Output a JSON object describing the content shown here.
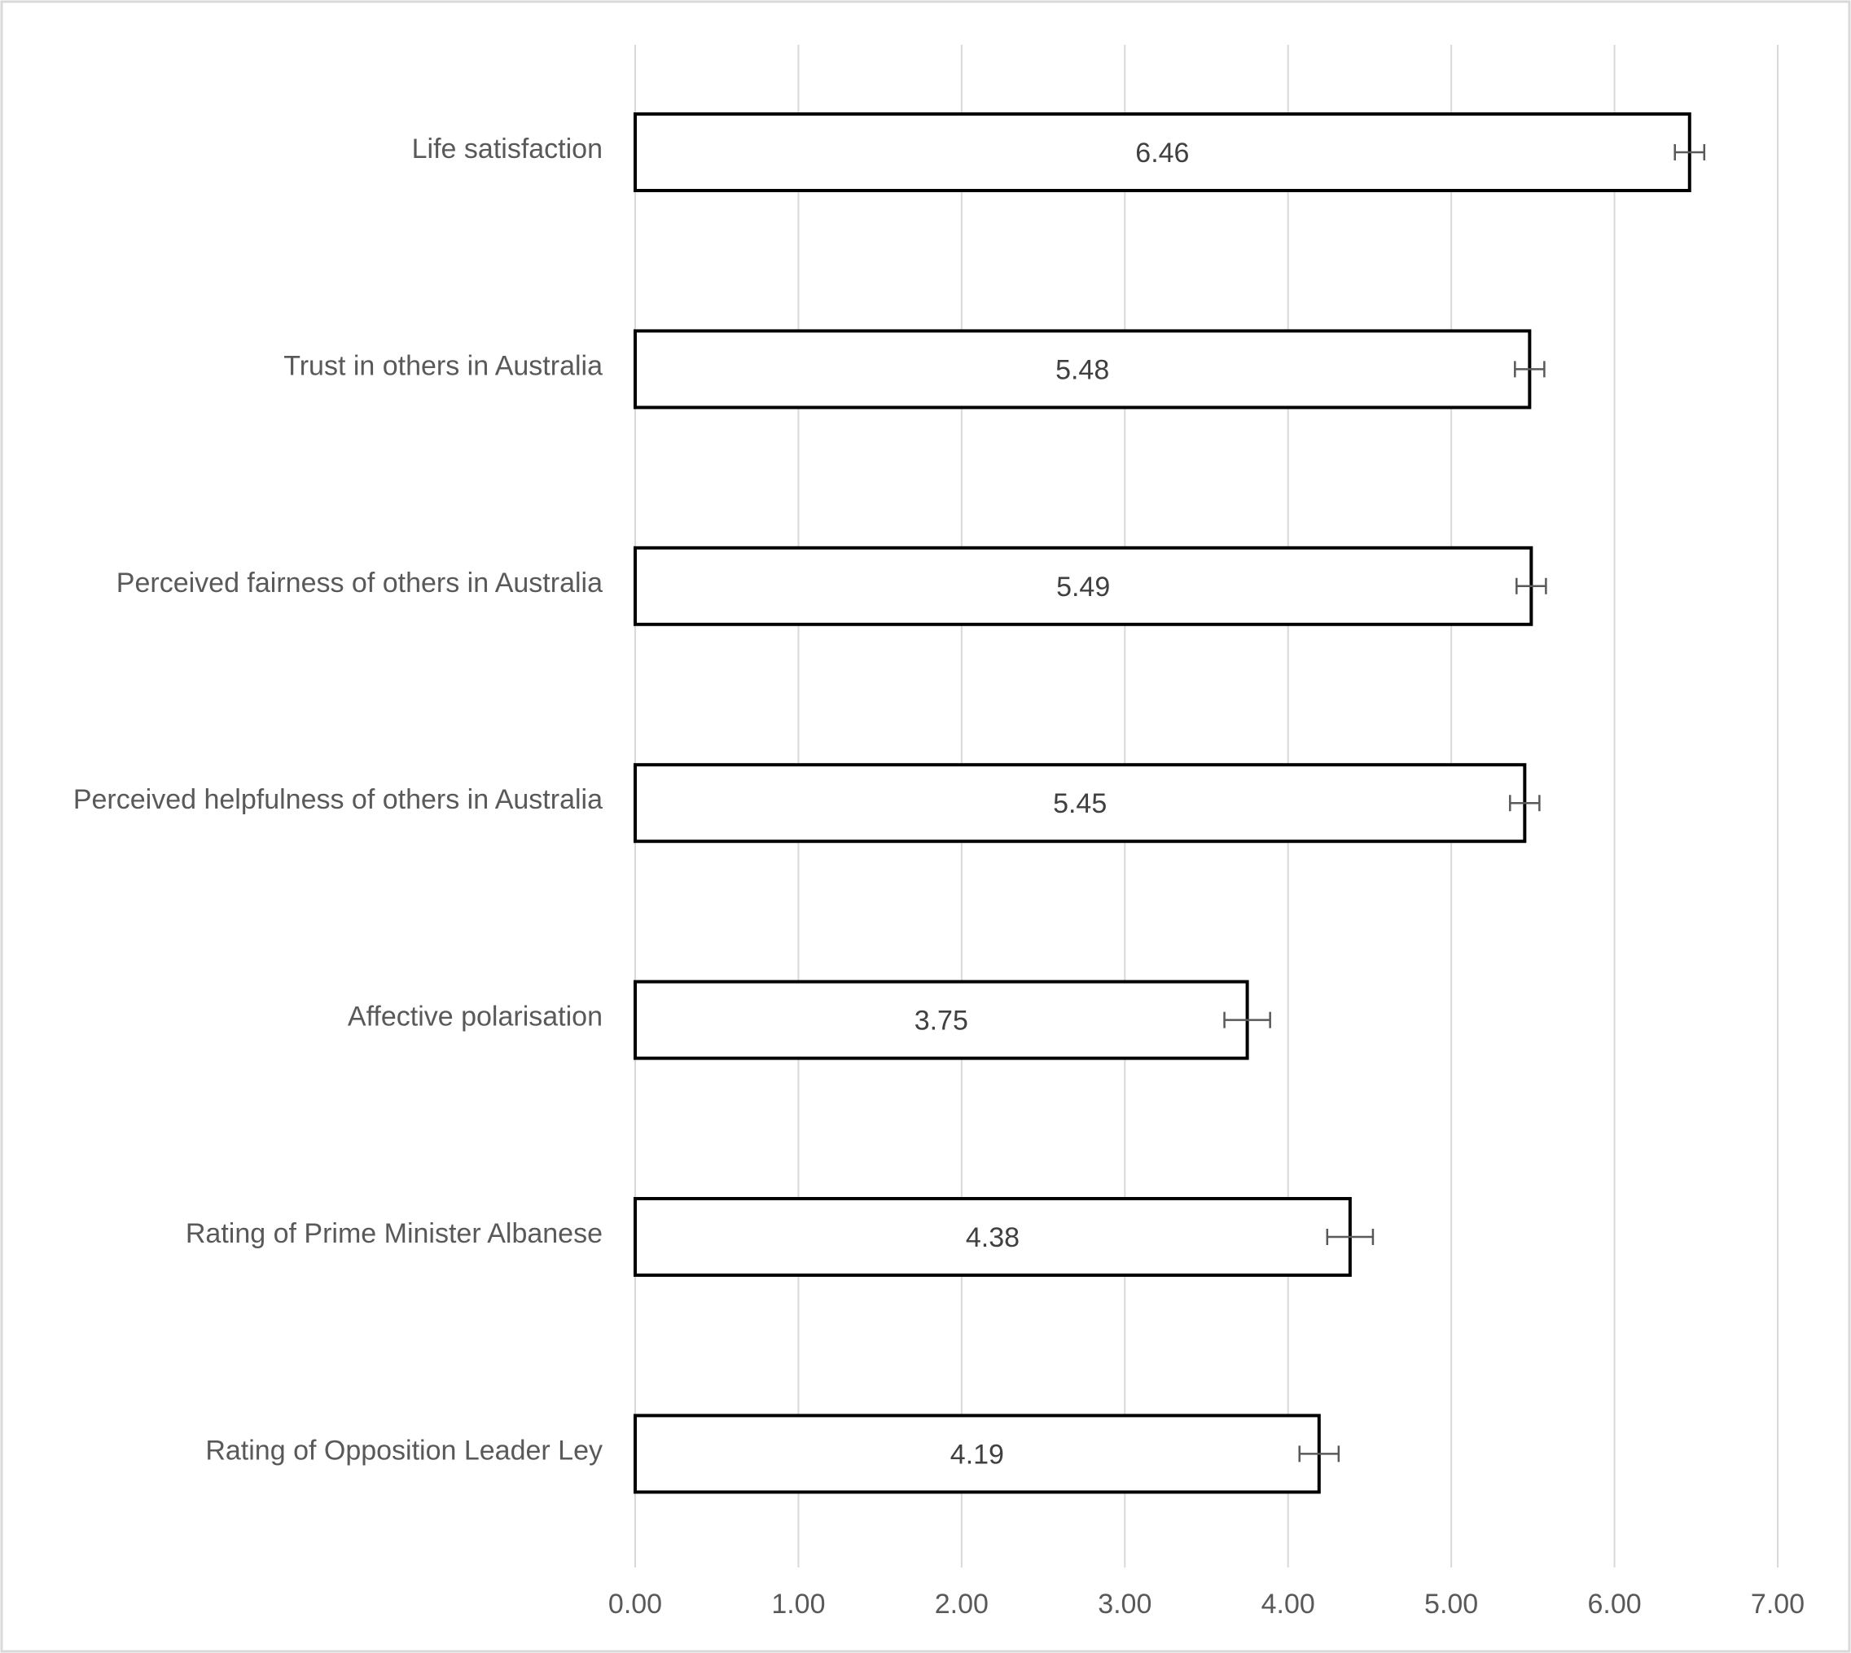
{
  "chart_data": {
    "type": "barh",
    "categories": [
      "Life satisfaction",
      "Trust in others in Australia",
      "Perceived fairness of others in Australia",
      "Perceived helpfulness of others in Australia",
      "Affective polarisation",
      "Rating of Prime Minister Albanese",
      "Rating of Opposition Leader Ley"
    ],
    "values": [
      6.46,
      5.48,
      5.49,
      5.45,
      3.75,
      4.38,
      4.19
    ],
    "errors": [
      0.09,
      0.09,
      0.09,
      0.09,
      0.14,
      0.14,
      0.12
    ],
    "color": "#ffffff",
    "edgecolor": "#000000",
    "xlim": [
      0,
      7
    ],
    "xticks": [
      {
        "value": 0,
        "label": "0.00"
      },
      {
        "value": 1,
        "label": "1.00"
      },
      {
        "value": 2,
        "label": "2.00"
      },
      {
        "value": 3,
        "label": "3.00"
      },
      {
        "value": 4,
        "label": "4.00"
      },
      {
        "value": 5,
        "label": "5.00"
      },
      {
        "value": 6,
        "label": "6.00"
      },
      {
        "value": 7,
        "label": "7.00"
      }
    ],
    "grid": true
  }
}
